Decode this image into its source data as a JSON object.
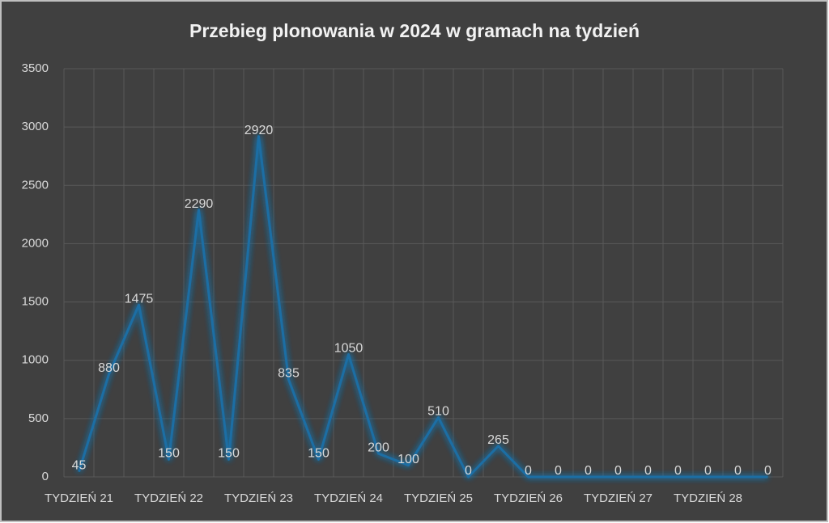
{
  "chart_data": {
    "type": "line",
    "title": "Przebieg plonowania w 2024 w gramach na tydzień",
    "categories": [
      "TYDZIEŃ 21",
      null,
      null,
      "TYDZIEŃ 22",
      null,
      null,
      "TYDZIEŃ 23",
      null,
      null,
      "TYDZIEŃ 24",
      null,
      null,
      "TYDZIEŃ 25",
      null,
      null,
      "TYDZIEŃ 26",
      null,
      null,
      "TYDZIEŃ 27",
      null,
      null,
      "TYDZIEŃ 28",
      null,
      null
    ],
    "values": [
      45,
      880,
      1475,
      150,
      2290,
      150,
      2920,
      835,
      150,
      1050,
      200,
      100,
      510,
      0,
      265,
      0,
      0,
      0,
      0,
      0,
      0,
      0,
      0,
      0
    ],
    "color": "#1c6ea4",
    "ylim": [
      0,
      3500
    ],
    "yticks": [
      0,
      500,
      1000,
      1500,
      2000,
      2500,
      3000,
      3500
    ],
    "grid": true
  }
}
